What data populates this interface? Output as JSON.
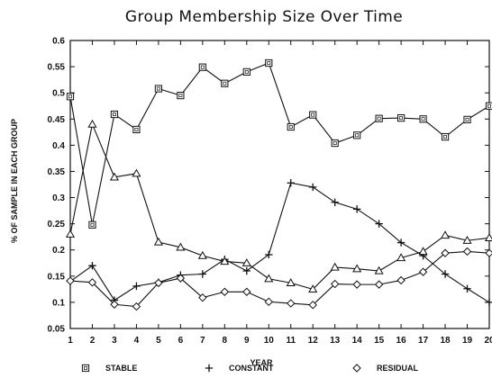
{
  "chart_data": {
    "type": "line",
    "title": "Group Membership Size Over Time",
    "xlabel": "YEAR",
    "ylabel": "% OF SAMPLE IN EACH GROUP",
    "x": [
      1,
      2,
      3,
      4,
      5,
      6,
      7,
      8,
      9,
      10,
      11,
      12,
      13,
      14,
      15,
      16,
      17,
      18,
      19,
      20
    ],
    "xlim": [
      1,
      20
    ],
    "ylim": [
      0.05,
      0.6
    ],
    "yticks": [
      "0.05",
      "0.1",
      "0.15",
      "0.2",
      "0.25",
      "0.3",
      "0.35",
      "0.4",
      "0.45",
      "0.5",
      "0.55",
      "0.6"
    ],
    "grid": false,
    "legend_position": "bottom",
    "series": [
      {
        "name": "STABLE",
        "marker": "square",
        "values": [
          0.493,
          0.248,
          0.459,
          0.43,
          0.508,
          0.495,
          0.549,
          0.518,
          0.54,
          0.557,
          0.435,
          0.458,
          0.404,
          0.419,
          0.451,
          0.452,
          0.45,
          0.416,
          0.449,
          0.475
        ]
      },
      {
        "name": "CONSTANT",
        "marker": "plus",
        "values": [
          0.14,
          0.17,
          0.104,
          0.131,
          0.138,
          0.152,
          0.154,
          0.182,
          0.16,
          0.191,
          0.328,
          0.32,
          0.291,
          0.278,
          0.25,
          0.214,
          0.189,
          0.154,
          0.126,
          0.1
        ]
      },
      {
        "name": "",
        "marker": "triangle",
        "values": [
          0.23,
          0.44,
          0.339,
          0.346,
          0.215,
          0.205,
          0.189,
          0.178,
          0.175,
          0.145,
          0.137,
          0.125,
          0.167,
          0.164,
          0.16,
          0.185,
          0.197,
          0.228,
          0.218,
          0.223
        ]
      },
      {
        "name": "RESIDUAL",
        "marker": "diamond",
        "values": [
          0.141,
          0.138,
          0.096,
          0.092,
          0.137,
          0.146,
          0.109,
          0.12,
          0.12,
          0.101,
          0.098,
          0.095,
          0.135,
          0.134,
          0.134,
          0.142,
          0.158,
          0.194,
          0.197,
          0.194
        ]
      }
    ]
  }
}
